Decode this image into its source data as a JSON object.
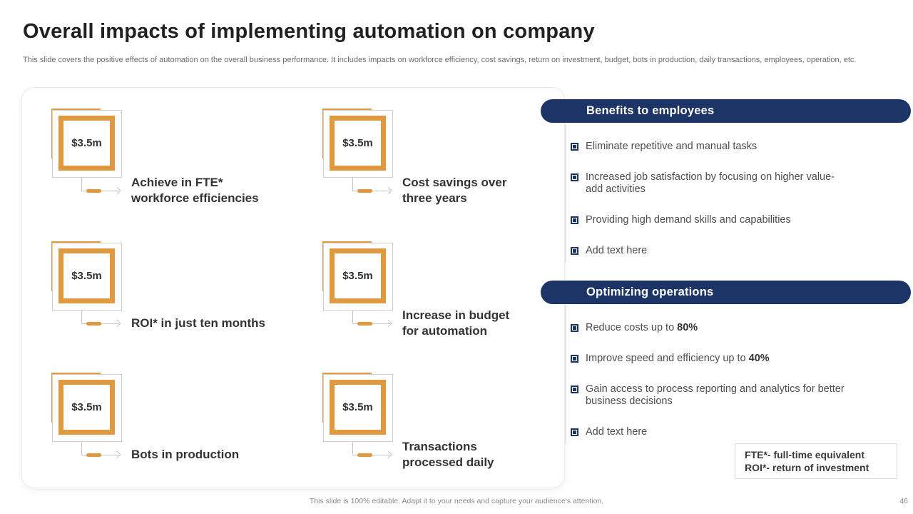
{
  "slide": {
    "title": "Overall impacts of implementing automation on company",
    "subtitle": "This slide covers the positive effects of automation on the overall business performance. It includes impacts on workforce efficiency, cost savings, return on investment, budget, bots in production, daily transactions, employees, operation, etc.",
    "footer_note": "This slide is 100% editable. Adapt it to your needs and capture your audience's attention.",
    "page_number": "46"
  },
  "colors": {
    "navy": "#1c3566",
    "orange": "#e0993f"
  },
  "metrics": [
    {
      "value": "$3.5m",
      "label": "Achieve in FTE*\nworkforce efficiencies"
    },
    {
      "value": "$3.5m",
      "label": "Cost savings over\nthree years"
    },
    {
      "value": "$3.5m",
      "label": "ROI* in just ten months"
    },
    {
      "value": "$3.5m",
      "label": "Increase in budget\nfor automation"
    },
    {
      "value": "$3.5m",
      "label": "Bots in production"
    },
    {
      "value": "$3.5m",
      "label": "Transactions\nprocessed daily"
    }
  ],
  "sections": [
    {
      "header": "Benefits to employees",
      "bullets": [
        {
          "text": "Eliminate repetitive and manual tasks",
          "bold": "",
          "placeholder": false
        },
        {
          "text": "Increased job satisfaction by focusing on higher value-\nadd activities",
          "bold": "",
          "placeholder": false
        },
        {
          "text": "Providing high demand skills and capabilities",
          "bold": "",
          "placeholder": false
        },
        {
          "text": "Add text here",
          "bold": "",
          "placeholder": true
        }
      ]
    },
    {
      "header": "Optimizing operations",
      "bullets": [
        {
          "text": "Reduce costs up to ",
          "bold": "80%",
          "placeholder": false
        },
        {
          "text": "Improve speed and efficiency up to ",
          "bold": "40%",
          "placeholder": false
        },
        {
          "text": "Gain access to process reporting and analytics for better\nbusiness decisions",
          "bold": "",
          "placeholder": false
        },
        {
          "text": "Add text here",
          "bold": "",
          "placeholder": true
        }
      ]
    }
  ],
  "legend": {
    "line1": "FTE*- full-time equivalent",
    "line2": "ROI*- return of investment"
  }
}
